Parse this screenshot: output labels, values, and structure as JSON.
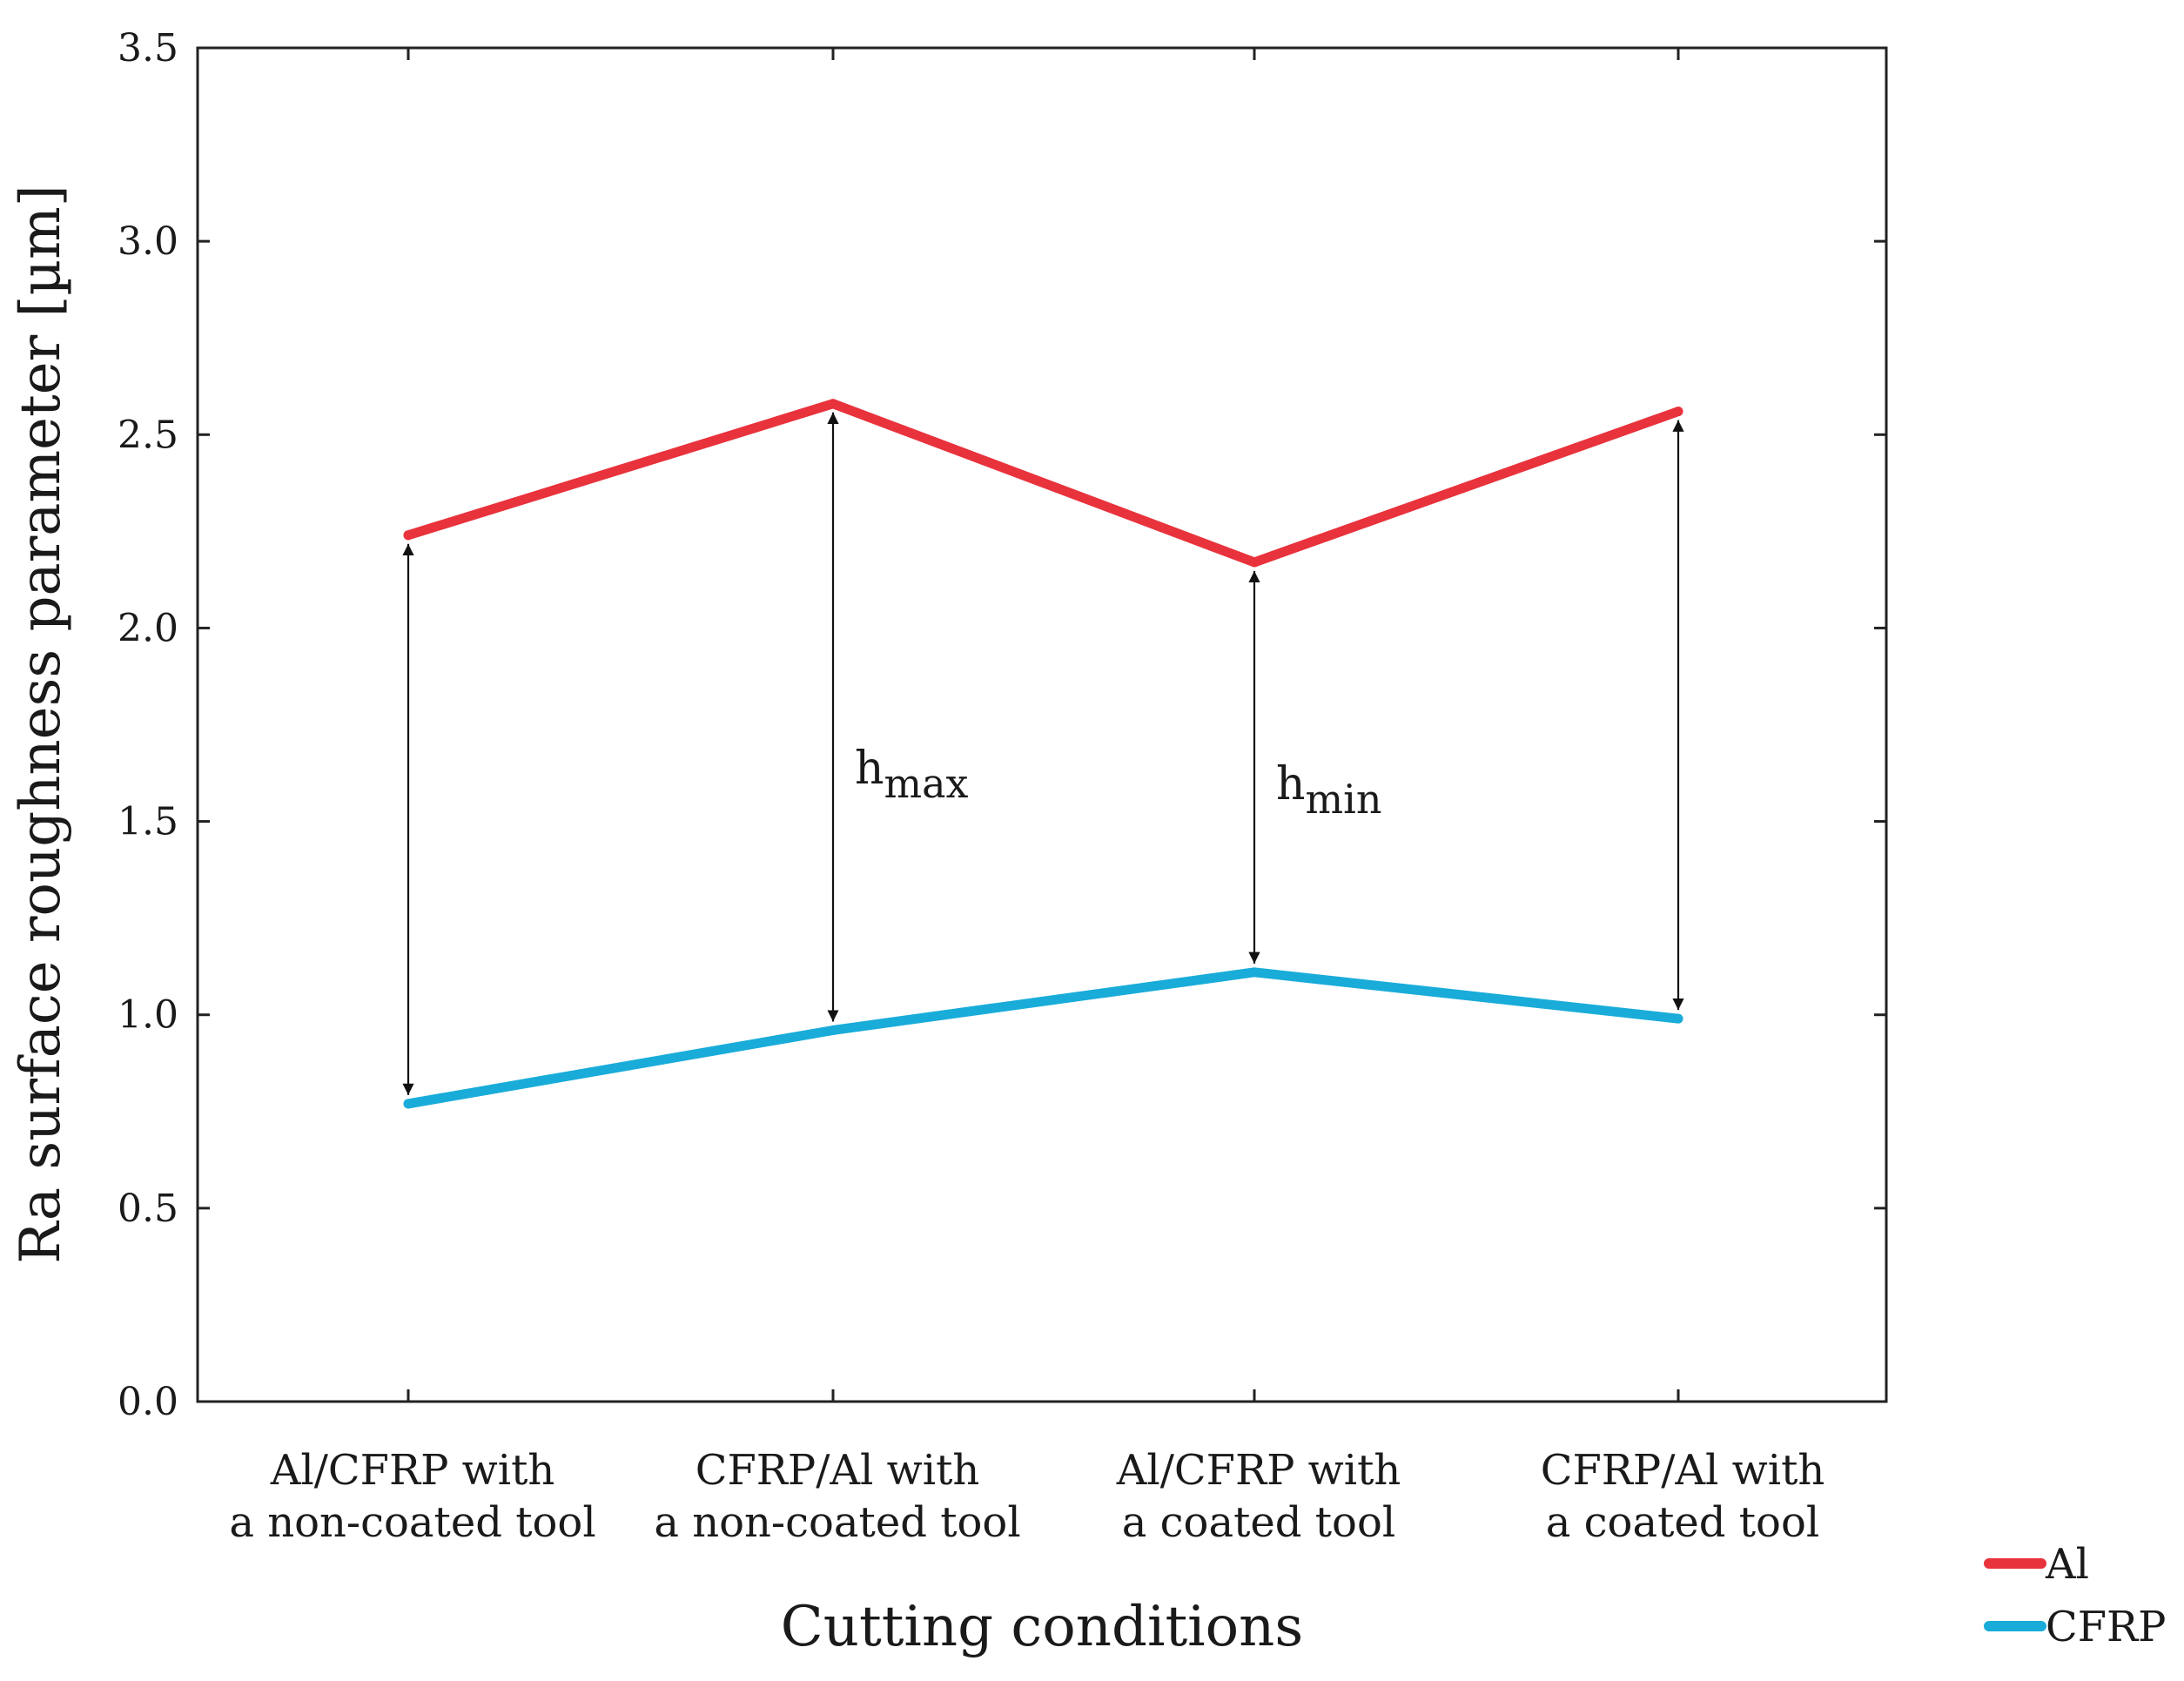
{
  "chart_data": {
    "type": "line",
    "title": "",
    "xlabel": "Cutting conditions",
    "ylabel": "Ra surface roughness parameter [µm]",
    "ylim": [
      0,
      3.5
    ],
    "yticks": [
      "0.0",
      "0.5",
      "1.0",
      "1.5",
      "2.0",
      "2.5",
      "3.0",
      "3.5"
    ],
    "categories": [
      [
        "Al/CFRP with",
        "a non-coated tool"
      ],
      [
        "CFRP/Al with",
        "a non-coated tool"
      ],
      [
        "Al/CFRP with",
        "a coated tool"
      ],
      [
        "CFRP/Al with",
        "a coated tool"
      ]
    ],
    "series": [
      {
        "name": "Al",
        "color": "#e8323c",
        "values": [
          2.24,
          2.58,
          2.17,
          2.56
        ]
      },
      {
        "name": "CFRP",
        "color": "#19acd9",
        "values": [
          0.77,
          0.96,
          1.11,
          0.99
        ]
      }
    ],
    "annotations": [
      {
        "base": "h",
        "sub": "max",
        "category_index": 1
      },
      {
        "base": "h",
        "sub": "min",
        "category_index": 2
      }
    ],
    "legend": "bottom-right",
    "grid": false
  }
}
